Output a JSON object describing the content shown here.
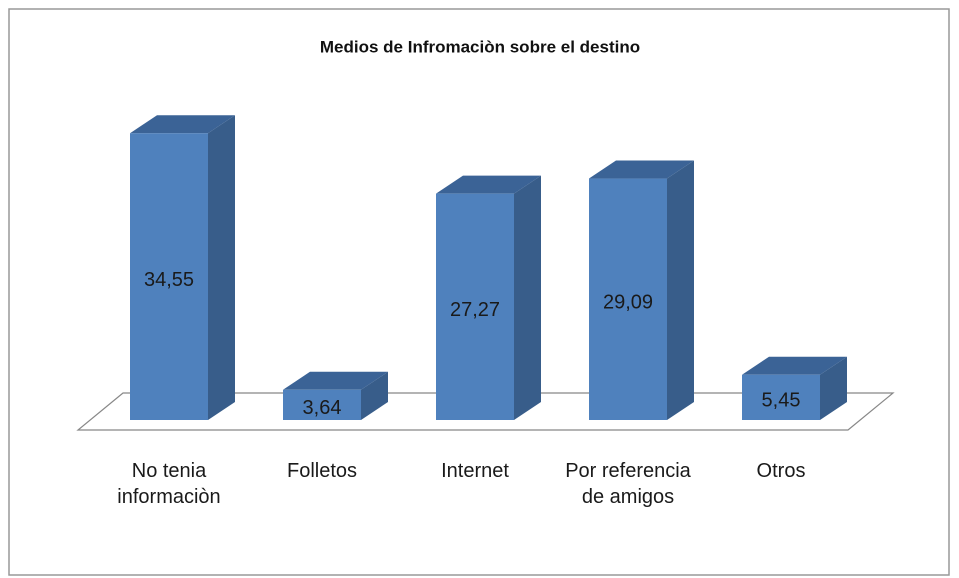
{
  "chart_data": {
    "type": "bar3d",
    "title": "Medios de Infromaciòn sobre el destino",
    "categories": [
      "No tenia informaciòn",
      "Folletos",
      "Internet",
      "Por referencia de amigos",
      "Otros"
    ],
    "values": [
      34.55,
      3.64,
      27.27,
      29.09,
      5.45
    ],
    "value_labels": [
      "34,55",
      "3,64",
      "27,27",
      "29,09",
      "5,45"
    ],
    "color": "#4f81bd"
  }
}
